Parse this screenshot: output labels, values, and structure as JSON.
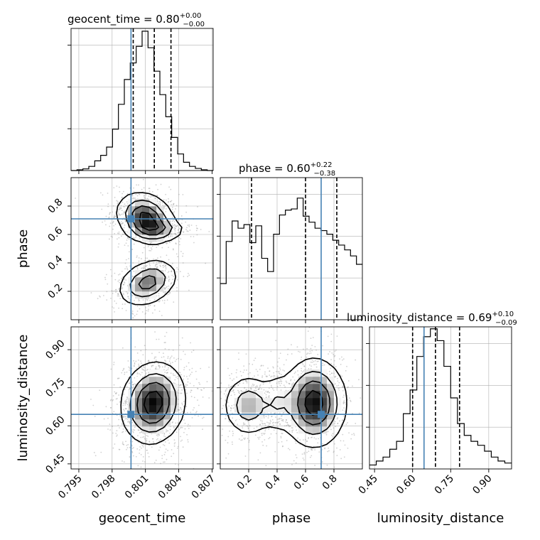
{
  "chart_data": {
    "type": "corner",
    "parameters": [
      {
        "name": "geocent_time",
        "axis_label": "geocent_time",
        "title_name": "geocent_time",
        "title_value": "0.80",
        "title_plus": "+0.00",
        "title_minus": "−0.00",
        "range": [
          0.7943,
          0.8071
        ],
        "ticks": [
          0.795,
          0.798,
          0.801,
          0.804,
          0.807
        ],
        "tick_labels": [
          "0.795",
          "0.798",
          "0.801",
          "0.804",
          "0.807"
        ],
        "truth": 0.7997,
        "quantiles": [
          0.7999,
          0.8018,
          0.8033
        ],
        "hist_counts": [
          0,
          0.5,
          1.2,
          3,
          7,
          11,
          17,
          30,
          48,
          66,
          78,
          90,
          101,
          89,
          72,
          55,
          39,
          24,
          12,
          6,
          3,
          1.5,
          0.5,
          0
        ],
        "hist_max": 103
      },
      {
        "name": "phase",
        "axis_label": "phase",
        "title_name": "phase",
        "title_value": "0.60",
        "title_plus": "+0.22",
        "title_minus": "−0.38",
        "range": [
          0.0,
          1.0
        ],
        "ticks": [
          0.2,
          0.4,
          0.6,
          0.8
        ],
        "tick_labels": [
          "0.2",
          "0.4",
          "0.6",
          "0.8"
        ],
        "truth": 0.71,
        "quantiles": [
          0.22,
          0.6,
          0.82
        ],
        "hist_counts": [
          3,
          6.5,
          8.2,
          7.6,
          7.9,
          6.4,
          7.8,
          5.1,
          4,
          7.1,
          8.7,
          9.1,
          9.2,
          10.1,
          8.6,
          8.1,
          7.6,
          7.4,
          7.1,
          6.6,
          6.2,
          5.8,
          5.3,
          4.6
        ],
        "hist_max": 11.8
      },
      {
        "name": "luminosity_distance",
        "axis_label": "luminosity_distance",
        "title_name": "luminosity_distance",
        "title_value": "0.69",
        "title_plus": "+0.10",
        "title_minus": "−0.09",
        "range": [
          0.43,
          0.99
        ],
        "ticks": [
          0.45,
          0.6,
          0.75,
          0.9
        ],
        "tick_labels": [
          "0.45",
          "0.60",
          "0.75",
          "0.90"
        ],
        "truth": 0.645,
        "quantiles": [
          0.6,
          0.69,
          0.785
        ],
        "hist_counts": [
          2,
          4,
          6,
          10,
          14,
          28,
          40,
          57,
          67,
          71,
          65,
          52,
          36,
          23,
          17,
          14,
          12,
          9,
          6,
          4,
          3
        ],
        "hist_max": 72
      }
    ],
    "pairs": [
      {
        "x_param": 0,
        "y_param": 1,
        "components": [
          {
            "mx": 0.801,
            "my": 0.72,
            "sx": 0.00125,
            "sy": 0.085,
            "rho": -0.2,
            "w": 0.45
          },
          {
            "mx": 0.802,
            "my": 0.63,
            "sx": 0.0013,
            "sy": 0.04,
            "rho": 0.0,
            "w": 0.2
          },
          {
            "mx": 0.8012,
            "my": 0.26,
            "sx": 0.0013,
            "sy": 0.08,
            "rho": 0.3,
            "w": 0.35
          }
        ]
      },
      {
        "x_param": 0,
        "y_param": 2,
        "components": [
          {
            "mx": 0.8017,
            "my": 0.69,
            "sx": 0.0014,
            "sy": 0.078,
            "rho": 0.1,
            "w": 1.0
          }
        ]
      },
      {
        "x_param": 1,
        "y_param": 2,
        "components": [
          {
            "mx": 0.66,
            "my": 0.69,
            "sx": 0.11,
            "sy": 0.085,
            "rho": 0.0,
            "w": 0.55
          },
          {
            "mx": 0.2,
            "my": 0.68,
            "sx": 0.09,
            "sy": 0.06,
            "rho": 0.0,
            "w": 0.3
          },
          {
            "mx": 0.4,
            "my": 0.69,
            "sx": 0.06,
            "sy": 0.06,
            "rho": 0.0,
            "w": 0.15
          }
        ]
      }
    ],
    "truth_color": "#4682b4",
    "hist_color": "#000000",
    "quantile_style": "dashed",
    "grid": true,
    "legend": "none",
    "contour_levels": 4
  }
}
